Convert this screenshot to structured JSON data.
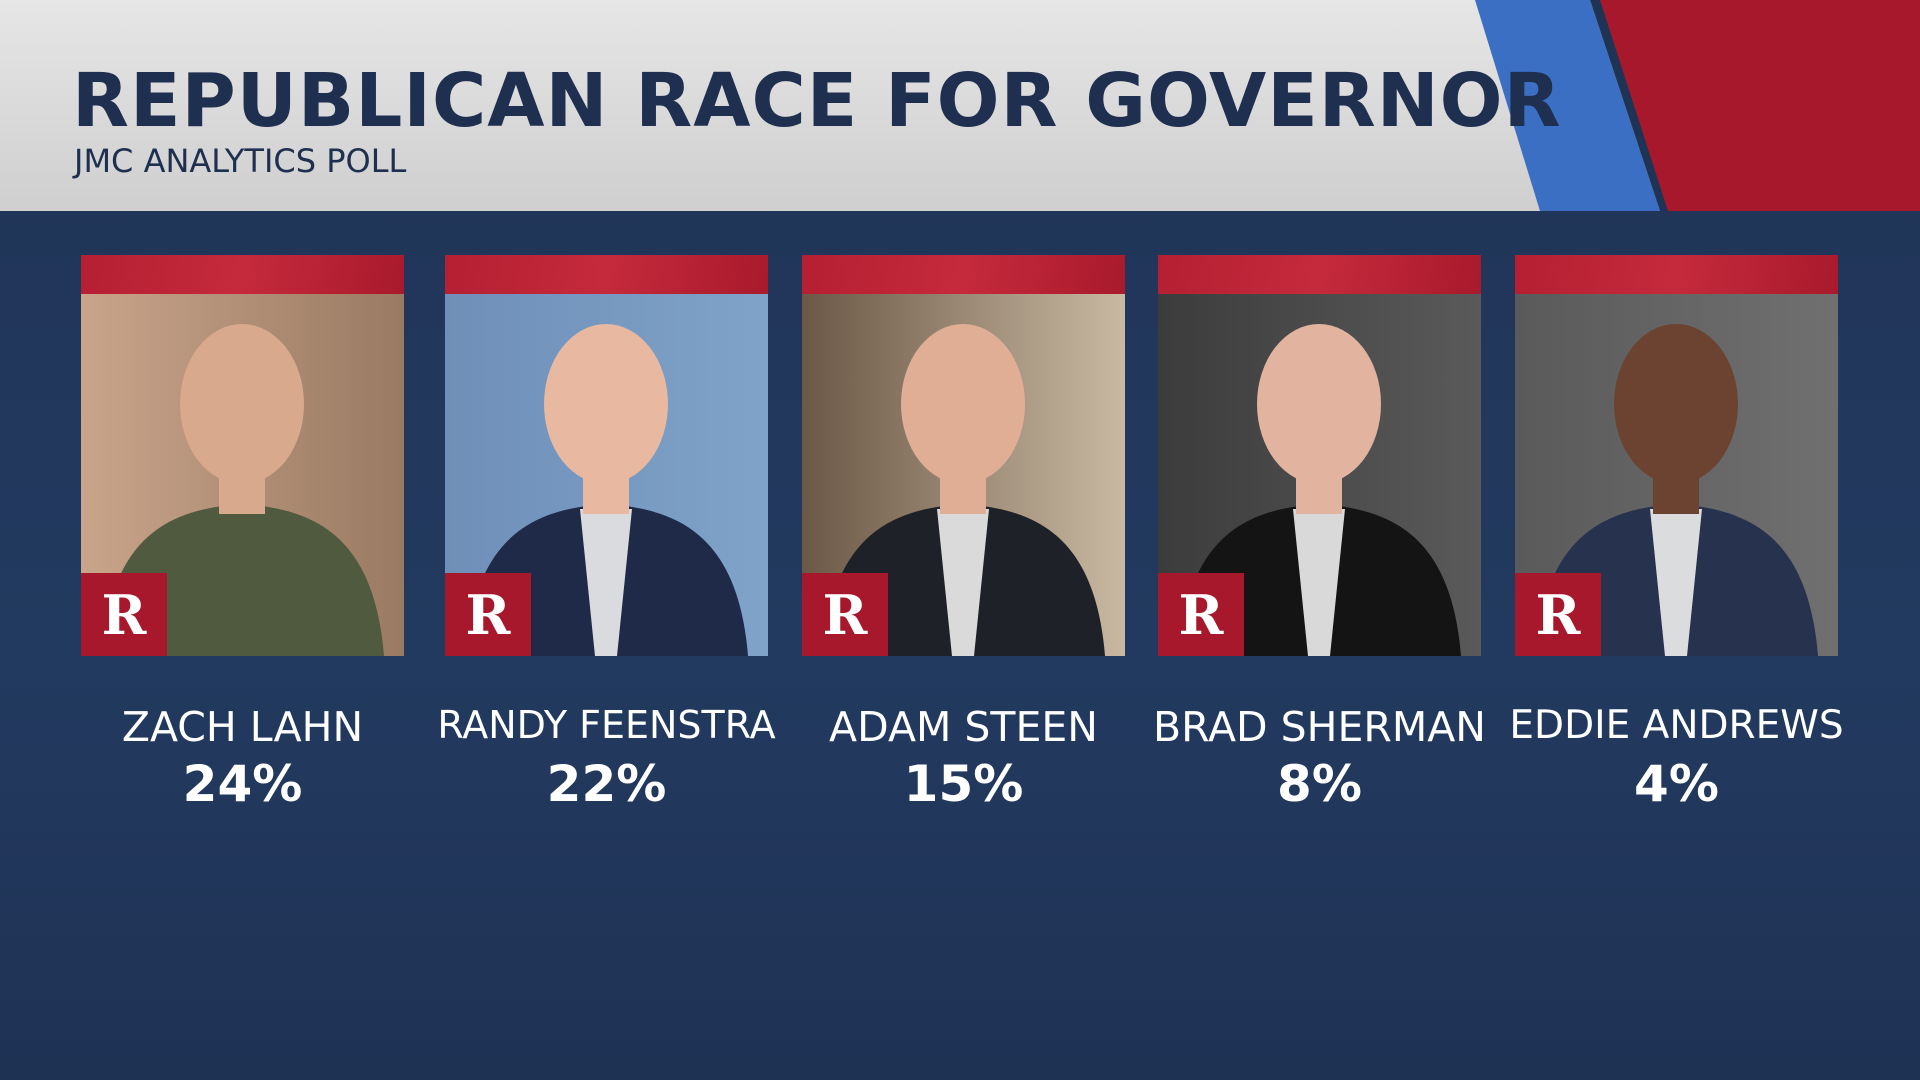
{
  "header": {
    "title": "REPUBLICAN RACE FOR GOVERNOR",
    "subtitle": "JMC ANALYTICS POLL"
  },
  "candidates": [
    {
      "name": "ZACH LAHN",
      "party": "R",
      "share": "24%"
    },
    {
      "name": "RANDY FEENSTRA",
      "party": "R",
      "share": "22%"
    },
    {
      "name": "ADAM STEEN",
      "party": "R",
      "share": "15%"
    },
    {
      "name": "BRAD SHERMAN",
      "party": "R",
      "share": "8%"
    },
    {
      "name": "EDDIE ANDREWS",
      "party": "R",
      "share": "4%"
    }
  ]
}
